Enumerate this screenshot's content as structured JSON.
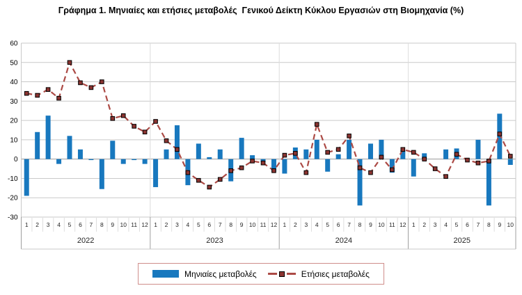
{
  "chart_data": {
    "type": "bar",
    "title": "Γράφημα 1. Μηνιαίες και ετήσιες μεταβολές  Γενικού Δείκτη Κύκλου Εργασιών στη Βιομηχανία (%)",
    "xlabel": "",
    "ylabel": "",
    "ylim": [
      -30,
      60
    ],
    "ytick_step": 10,
    "grid": "horizontal",
    "legend_position": "bottom",
    "year_groups": [
      {
        "label": "2022",
        "months": 12
      },
      {
        "label": "2023",
        "months": 12
      },
      {
        "label": "2024",
        "months": 12
      },
      {
        "label": "2025",
        "months": 10
      }
    ],
    "series": [
      {
        "name": "Μηνιαίες μεταβολές",
        "mark": "bar",
        "color": "#1878BE",
        "values": [
          -19,
          14,
          22.5,
          -2.5,
          12,
          5,
          -0.5,
          -15.5,
          9.5,
          -2.5,
          -0.5,
          -2.5,
          -14.5,
          5,
          17.5,
          -13.5,
          8,
          1,
          5,
          -11.5,
          11,
          2,
          -1.5,
          -6.5,
          -7.5,
          6,
          5,
          10,
          -6.5,
          2.5,
          10,
          -24,
          8,
          10,
          -7,
          4.5,
          -9,
          3,
          0,
          5,
          5.5,
          0,
          10,
          -24,
          23.5,
          -3
        ]
      },
      {
        "name": "Ετήσιες μεταβολές",
        "mark": "line-dashed",
        "color": "#AC4A45",
        "marker_color": "#8B3431",
        "values": [
          34,
          33,
          36,
          31.5,
          50,
          39.5,
          37,
          40,
          21,
          22.5,
          17,
          14,
          19.5,
          9.5,
          5,
          -7,
          -11,
          -14.5,
          -10.5,
          -6,
          -4.5,
          -1,
          -2,
          -6,
          2,
          3,
          -7,
          18,
          3.5,
          5,
          12,
          -4.5,
          -7,
          1,
          -5.5,
          5,
          3.5,
          0,
          -5,
          -9,
          2.5,
          -0.5,
          -2,
          -1,
          13,
          1.5
        ]
      }
    ]
  }
}
